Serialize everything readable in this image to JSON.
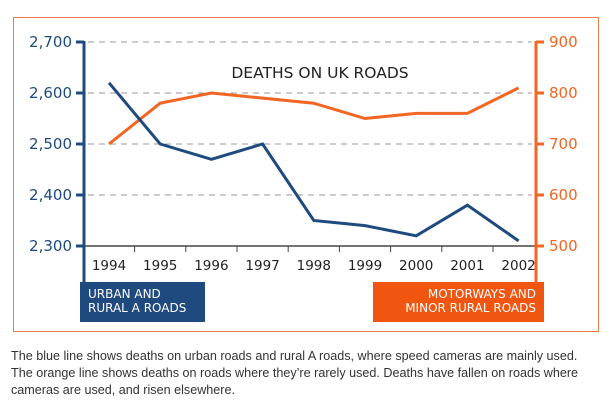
{
  "chart_data": {
    "type": "line",
    "title": "DEATHS ON UK ROADS",
    "xlabel": "",
    "ylabel_left": "",
    "ylabel_right": "",
    "categories": [
      "1994",
      "1995",
      "1996",
      "1997",
      "1998",
      "1999",
      "2000",
      "2001",
      "2002"
    ],
    "series": [
      {
        "name": "URBAN AND RURAL A ROADS",
        "axis": "left",
        "color": "#1f4a7f",
        "values": [
          2620,
          2500,
          2470,
          2500,
          2350,
          2340,
          2320,
          2380,
          2310
        ]
      },
      {
        "name": "MOTORWAYS AND MINOR RURAL ROADS",
        "axis": "right",
        "color": "#f26522",
        "values": [
          700,
          780,
          800,
          790,
          780,
          750,
          760,
          760,
          810
        ]
      }
    ],
    "left_axis": {
      "range": [
        2300,
        2700
      ],
      "ticks": [
        2300,
        2400,
        2500,
        2600,
        2700
      ],
      "tick_labels": [
        "2,300",
        "2,400",
        "2,500",
        "2,600",
        "2,700"
      ],
      "color": "#1f4a7f"
    },
    "right_axis": {
      "range": [
        500,
        900
      ],
      "ticks": [
        500,
        600,
        700,
        800,
        900
      ],
      "tick_labels": [
        "500",
        "600",
        "700",
        "800",
        "900"
      ],
      "color": "#f26522"
    },
    "grid": "horizontal dashed",
    "legend": [
      {
        "line1": "URBAN AND",
        "line2": "RURAL A ROADS",
        "color": "#1f4a7f",
        "placement": "bottom-left"
      },
      {
        "line1": "MOTORWAYS AND",
        "line2": "MINOR RURAL ROADS",
        "color": "#f0560f",
        "placement": "bottom-right"
      }
    ]
  },
  "caption": "The blue line shows deaths on urban roads and rural A roads, where speed cameras are mainly used. The orange line shows deaths on roads where they’re rarely used. Deaths have fallen on roads where cameras are used, and risen elsewhere."
}
